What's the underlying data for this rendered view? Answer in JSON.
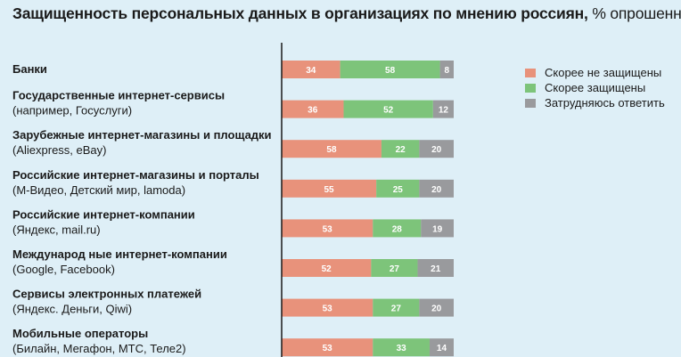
{
  "title": "Защищенность персональных данных в организациях по мнению россиян,",
  "title_unit": "% опрошенных",
  "legend": [
    {
      "label": "Скорее не защищены",
      "color": "#e8927b"
    },
    {
      "label": "Скорее защищены",
      "color": "#7dc47a"
    },
    {
      "label": "Затрудняюсь ответить",
      "color": "#999a9d"
    }
  ],
  "chart_data": {
    "type": "bar",
    "orientation": "horizontal",
    "stacked": true,
    "categories": [
      {
        "name": "Банки",
        "note": ""
      },
      {
        "name": "Государственные интернет-сервисы",
        "note": "(например, Госуслуги)"
      },
      {
        "name": "Зарубежные интернет-магазины и площадки",
        "note": "(Aliexpress, eBay)"
      },
      {
        "name": "Российские интернет-магазины и порталы",
        "note": "(М-Видео, Детский мир, lamoda)"
      },
      {
        "name": "Российские интернет-компании",
        "note": "(Яндекс, mail.ru)"
      },
      {
        "name": "Международ ные интернет-компании",
        "note": "(Google, Facebook)"
      },
      {
        "name": "Сервисы электронных платежей",
        "note": "(Яндекс. Деньги, Qiwi)"
      },
      {
        "name": "Мобильные операторы",
        "note": "(Билайн, Мегафон, МТС, Теле2)"
      }
    ],
    "series": [
      {
        "name": "Скорее не защищены",
        "color": "#e8927b",
        "values": [
          34,
          36,
          58,
          55,
          53,
          52,
          53,
          53
        ]
      },
      {
        "name": "Скорее защищены",
        "color": "#7dc47a",
        "values": [
          58,
          52,
          22,
          25,
          28,
          27,
          27,
          33
        ]
      },
      {
        "name": "Затрудняюсь ответить",
        "color": "#999a9d",
        "values": [
          8,
          12,
          20,
          20,
          19,
          21,
          20,
          14
        ]
      }
    ],
    "xlim": [
      0,
      100
    ],
    "legend_position": "right"
  }
}
